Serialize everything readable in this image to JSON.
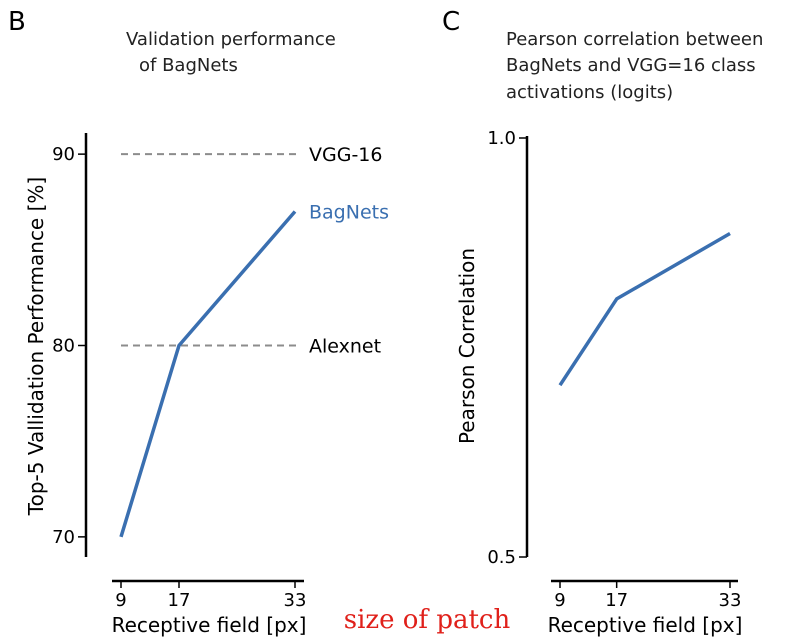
{
  "colors": {
    "series": "#3a6fb0",
    "reference": "#8c8c8c",
    "axis": "#000000",
    "annotation": "#e0201a"
  },
  "annotation": "size of patch",
  "chart_data": [
    {
      "panel": "B",
      "type": "line",
      "title_lines": [
        "Validation performance",
        "of BagNets"
      ],
      "xlabel": "Receptive field [px]",
      "ylabel": "Top-5 Vallidation Performance [%]",
      "x": [
        9,
        17,
        33
      ],
      "xticks": [
        9,
        17,
        33
      ],
      "yticks": [
        70,
        80,
        90
      ],
      "xlim": [
        9,
        33
      ],
      "ylim": [
        69,
        91
      ],
      "series": [
        {
          "name": "BagNets",
          "values": [
            70,
            80,
            87
          ]
        }
      ],
      "reference_lines": [
        {
          "name": "VGG-16",
          "value": 90
        },
        {
          "name": "Alexnet",
          "value": 80
        }
      ]
    },
    {
      "panel": "C",
      "type": "line",
      "title_lines": [
        "Pearson correlation between",
        "BagNets and VGG=16 class",
        "activations (logits)"
      ],
      "xlabel": "Receptive field [px]",
      "ylabel": "Pearson Correlation",
      "x": [
        9,
        17,
        33
      ],
      "xticks": [
        9,
        17,
        33
      ],
      "yticks": [
        0.5,
        1.0
      ],
      "ytick_labels": [
        "0.5",
        "1.0"
      ],
      "xlim": [
        9,
        33
      ],
      "ylim": [
        0.5,
        1.0
      ],
      "series": [
        {
          "values": [
            0.705,
            0.808,
            0.886
          ]
        }
      ]
    }
  ]
}
